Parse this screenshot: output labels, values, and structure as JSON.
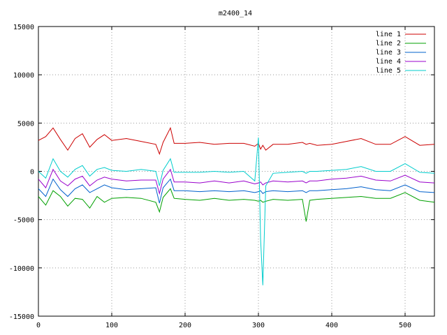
{
  "chart_data": {
    "type": "line",
    "title": "m2400_14",
    "xlabel": "",
    "ylabel": "",
    "xlim": [
      0,
      540
    ],
    "ylim": [
      -15000,
      15000
    ],
    "x_ticks": [
      0,
      100,
      200,
      300,
      400,
      500
    ],
    "y_ticks": [
      -15000,
      -10000,
      -5000,
      0,
      5000,
      10000,
      15000
    ],
    "grid": true,
    "legend_position": "top-right",
    "x": [
      0,
      10,
      20,
      30,
      40,
      50,
      60,
      70,
      80,
      90,
      100,
      120,
      140,
      160,
      165,
      170,
      180,
      185,
      200,
      220,
      240,
      260,
      280,
      295,
      300,
      303,
      306,
      310,
      320,
      340,
      360,
      365,
      370,
      380,
      400,
      420,
      440,
      460,
      480,
      500,
      520,
      540
    ],
    "series": [
      {
        "name": "line 1",
        "color": "#cc0000",
        "values": [
          3200,
          3600,
          4500,
          3300,
          2200,
          3400,
          3900,
          2500,
          3300,
          3800,
          3200,
          3400,
          3100,
          2800,
          1800,
          3000,
          4500,
          2900,
          2900,
          3000,
          2800,
          2900,
          2900,
          2600,
          2900,
          2300,
          2700,
          2200,
          2800,
          2800,
          3000,
          2800,
          2900,
          2700,
          2800,
          3100,
          3400,
          2800,
          2800,
          3600,
          2700,
          2800
        ]
      },
      {
        "name": "line 2",
        "color": "#00a000",
        "values": [
          -2600,
          -3500,
          -2000,
          -2600,
          -3600,
          -2800,
          -2900,
          -3800,
          -2600,
          -3200,
          -2800,
          -2700,
          -2800,
          -3200,
          -4200,
          -2700,
          -1800,
          -2800,
          -2900,
          -3000,
          -2800,
          -3000,
          -2900,
          -3000,
          -3100,
          -3000,
          -3200,
          -3100,
          -2900,
          -3000,
          -2900,
          -5200,
          -3000,
          -2900,
          -2800,
          -2700,
          -2600,
          -2800,
          -2800,
          -2200,
          -3000,
          -3200
        ]
      },
      {
        "name": "line 3",
        "color": "#0060cc",
        "values": [
          -1800,
          -2600,
          -800,
          -1900,
          -2600,
          -1800,
          -1400,
          -2200,
          -1800,
          -1400,
          -1700,
          -1900,
          -1800,
          -1700,
          -3300,
          -1700,
          -800,
          -2000,
          -2000,
          -2100,
          -2000,
          -2100,
          -2000,
          -2200,
          -2100,
          -2000,
          -2300,
          -2100,
          -2000,
          -2100,
          -2000,
          -2200,
          -2000,
          -2000,
          -1900,
          -1800,
          -1600,
          -1900,
          -2000,
          -1400,
          -2100,
          -2200
        ]
      },
      {
        "name": "line 4",
        "color": "#9900cc",
        "values": [
          -800,
          -1700,
          200,
          -1000,
          -1500,
          -800,
          -500,
          -1500,
          -900,
          -600,
          -800,
          -1000,
          -900,
          -900,
          -2300,
          -800,
          200,
          -1100,
          -1100,
          -1200,
          -1000,
          -1200,
          -1000,
          -1300,
          -1200,
          -1100,
          -1400,
          -1200,
          -1000,
          -1100,
          -1000,
          -1200,
          -1000,
          -1000,
          -800,
          -700,
          -500,
          -900,
          -1000,
          -400,
          -1100,
          -1200
        ]
      },
      {
        "name": "line 5",
        "color": "#00cccc",
        "values": [
          0,
          -700,
          1300,
          0,
          -600,
          200,
          600,
          -500,
          200,
          400,
          100,
          0,
          200,
          0,
          -1500,
          100,
          1300,
          -100,
          -100,
          -100,
          0,
          -100,
          0,
          -1000,
          3500,
          -7000,
          -11800,
          -1500,
          -200,
          -100,
          0,
          -200,
          0,
          0,
          100,
          200,
          500,
          0,
          0,
          800,
          -100,
          -200
        ]
      }
    ]
  }
}
